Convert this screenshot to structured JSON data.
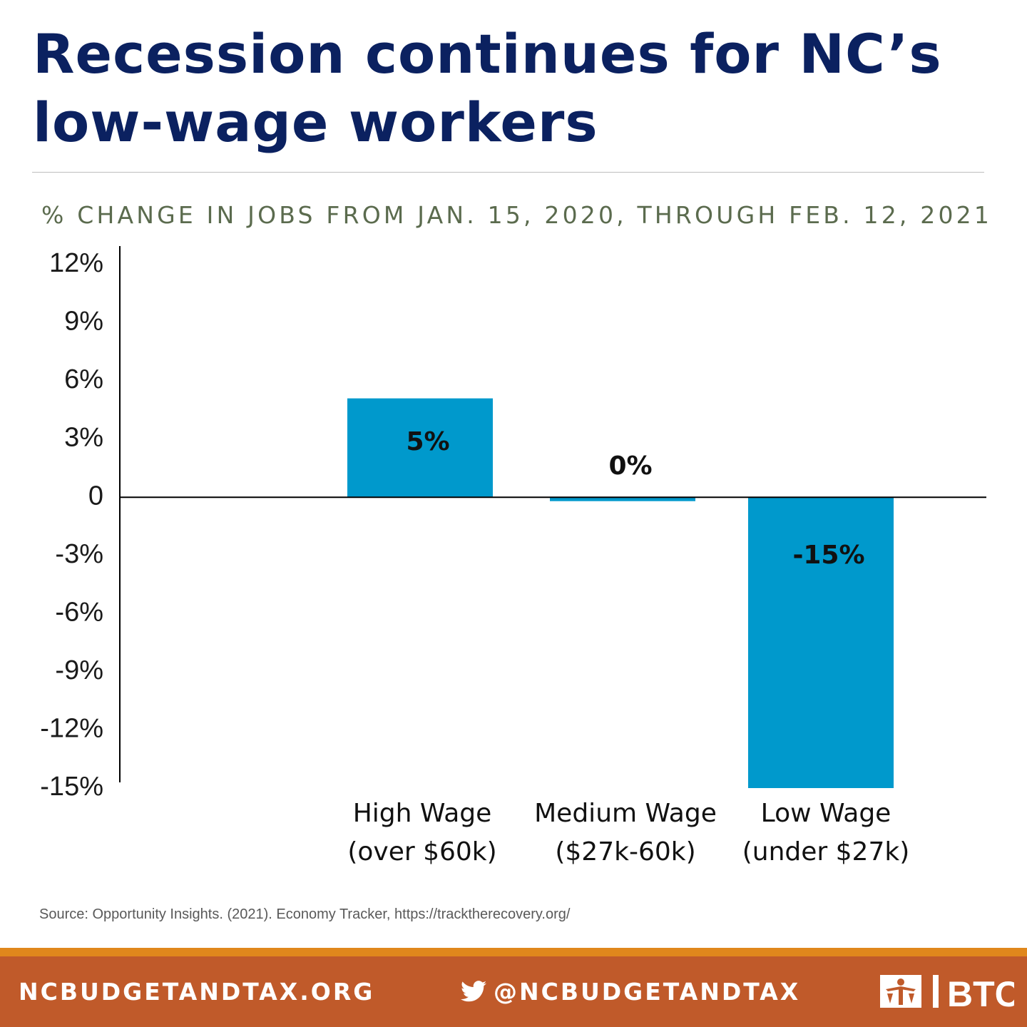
{
  "title": "Recession continues for NC’s low-wage workers",
  "subtitle": "% CHANGE IN JOBS FROM JAN. 15, 2020, THROUGH FEB. 12, 2021",
  "chart_data": {
    "type": "bar",
    "title": "",
    "xlabel": "",
    "ylabel": "",
    "ylim": [
      -15,
      12
    ],
    "yticks": [
      {
        "value": 12,
        "label": "12%"
      },
      {
        "value": 9,
        "label": "9%"
      },
      {
        "value": 6,
        "label": "6%"
      },
      {
        "value": 3,
        "label": "3%"
      },
      {
        "value": 0,
        "label": "0"
      },
      {
        "value": -3,
        "label": "-3%"
      },
      {
        "value": -6,
        "label": "-6%"
      },
      {
        "value": -9,
        "label": "-9%"
      },
      {
        "value": -12,
        "label": "-12%"
      },
      {
        "value": -15,
        "label": "-15%"
      }
    ],
    "categories": [
      {
        "line1": "High Wage",
        "line2": "(over $60k)"
      },
      {
        "line1": "Medium Wage",
        "line2": "($27k-60k)"
      },
      {
        "line1": "Low Wage",
        "line2": "(under $27k)"
      }
    ],
    "values": [
      5,
      0,
      -15
    ],
    "display_values": [
      5.1,
      -0.2,
      -15.0
    ],
    "data_labels": [
      "5%",
      "0%",
      "-15%"
    ],
    "bar_color": "#0099cc",
    "grid": false,
    "legend": "none"
  },
  "source": "Source: Opportunity Insights. (2021).  Economy Tracker, https://tracktherecovery.org/",
  "footer": {
    "website": "NCBUDGETANDTAX.ORG",
    "twitter": "@NCBUDGETANDTAX",
    "twitter_icon": "twitter-bird-icon",
    "logo_text": "BTC",
    "logo_icon": "btc-logo-icon"
  }
}
